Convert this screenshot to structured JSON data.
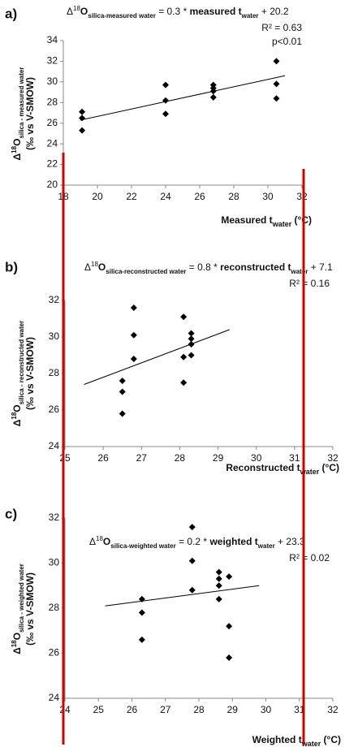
{
  "chart_data": [
    {
      "type": "scatter",
      "panel": "a)",
      "equation": [
        "Δ",
        "18",
        "O",
        "silica-measured water",
        " = 0.3 * ",
        "measured t",
        "water",
        "  + 20.2"
      ],
      "r2": "R² = 0.63",
      "p": "p<0.01",
      "ylabel": [
        "Δ",
        "18",
        "O",
        "silica - measured water",
        "(‰ vs V-SMOW)"
      ],
      "xlabel": [
        "Measured t",
        "water",
        " (°C)"
      ],
      "x": [
        19.1,
        19.1,
        19.1,
        24,
        24,
        24,
        26.8,
        26.8,
        26.8,
        26.8,
        30.5,
        30.5,
        30.5
      ],
      "values": [
        27.1,
        26.5,
        25.3,
        29.7,
        28.2,
        26.9,
        29.7,
        29.4,
        29.1,
        28.5,
        32,
        29.8,
        28.4
      ],
      "fit": {
        "x": [
          19,
          31
        ],
        "y": [
          26.3,
          30.6
        ]
      },
      "color": "#000000",
      "xlim": [
        18,
        32
      ],
      "xticks": [
        18,
        20,
        22,
        24,
        26,
        28,
        30,
        32
      ],
      "ylim": [
        20,
        34
      ],
      "yticks": [
        20,
        22,
        24,
        26,
        28,
        30,
        32,
        34
      ]
    },
    {
      "type": "scatter",
      "panel": "b)",
      "equation": [
        "Δ",
        "18",
        "O",
        "silica-reconstructed water",
        " = 0.8 * ",
        "reconstructed t",
        "water",
        "  + 7.1"
      ],
      "r2": "R² = 0.16",
      "ylabel": [
        "Δ",
        "18",
        "O",
        "silica - reconstructed water",
        "(‰ vs V-SMOW)"
      ],
      "xlabel": [
        "Reconstructed t",
        "water",
        " (°C)"
      ],
      "x": [
        26.5,
        26.5,
        26.5,
        26.8,
        26.8,
        26.8,
        28.1,
        28.1,
        28.1,
        28.3,
        28.3,
        28.3,
        28.3
      ],
      "values": [
        27.6,
        27,
        25.8,
        31.6,
        30.1,
        28.8,
        31.1,
        28.9,
        27.5,
        30.2,
        29.9,
        29.6,
        29
      ],
      "fit": {
        "x": [
          25.5,
          29.3
        ],
        "y": [
          27.4,
          30.4
        ]
      },
      "color": "#000000",
      "xlim": [
        25,
        32
      ],
      "xticks": [
        25,
        26,
        27,
        28,
        29,
        30,
        31,
        32
      ],
      "ylim": [
        24,
        32
      ],
      "yticks": [
        24,
        26,
        28,
        30,
        32
      ]
    },
    {
      "type": "scatter",
      "panel": "c)",
      "equation": [
        "Δ",
        "18",
        "O",
        "silica-weighted water",
        " = 0.2 * ",
        "weighted t",
        "water",
        "  + 23.3"
      ],
      "r2": "R² = 0.02",
      "ylabel": [
        "Δ",
        "18",
        "O",
        "silica - weighted water",
        "(‰ vs V-SMOW)"
      ],
      "xlabel": [
        "Weighted t",
        "water",
        " (°C)"
      ],
      "x": [
        26.3,
        26.3,
        26.3,
        27.8,
        27.8,
        27.8,
        28.6,
        28.6,
        28.6,
        28.6,
        28.9,
        28.9,
        28.9
      ],
      "values": [
        28.4,
        27.8,
        26.6,
        31.6,
        30.1,
        28.8,
        29.6,
        29.3,
        29,
        28.4,
        29.4,
        27.2,
        25.8
      ],
      "fit": {
        "x": [
          25.2,
          29.8
        ],
        "y": [
          28.1,
          29
        ]
      },
      "color": "#000000",
      "xlim": [
        24,
        32
      ],
      "xticks": [
        24,
        25,
        26,
        27,
        28,
        29,
        30,
        31,
        32
      ],
      "ylim": [
        24,
        32
      ],
      "yticks": [
        24,
        26,
        28,
        30,
        32
      ]
    }
  ]
}
